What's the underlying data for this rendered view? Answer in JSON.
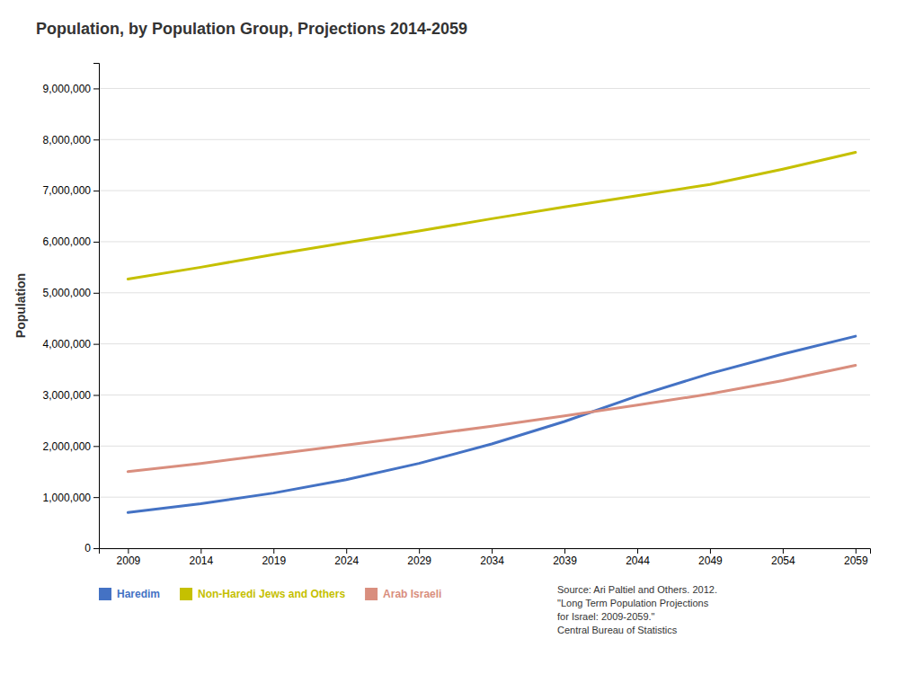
{
  "chart_data": {
    "type": "line",
    "title": "Population, by Population Group, Projections 2014-2059",
    "ylabel": "Population",
    "x": [
      2009,
      2014,
      2019,
      2024,
      2029,
      2034,
      2039,
      2044,
      2049,
      2054,
      2059
    ],
    "series": [
      {
        "name": "Haredim",
        "color": "#4472c4",
        "values": [
          700000,
          870000,
          1080000,
          1340000,
          1660000,
          2040000,
          2480000,
          2980000,
          3420000,
          3800000,
          4150000
        ]
      },
      {
        "name": "Non-Haredi Jews and Others",
        "color": "#c5c000",
        "values": [
          5270000,
          5500000,
          5750000,
          5980000,
          6210000,
          6450000,
          6680000,
          6900000,
          7120000,
          7420000,
          7750000
        ]
      },
      {
        "name": "Arab Israeli",
        "color": "#d98e7e",
        "values": [
          1500000,
          1660000,
          1840000,
          2020000,
          2200000,
          2390000,
          2590000,
          2800000,
          3020000,
          3280000,
          3580000
        ]
      }
    ],
    "xlim": [
      2007,
      2060
    ],
    "xticks": [
      2009,
      2014,
      2019,
      2024,
      2029,
      2034,
      2039,
      2044,
      2049,
      2054,
      2059
    ],
    "ylim": [
      0,
      9500000
    ],
    "yticks": [
      0,
      {
        "value": 1000000,
        "label": "1,000,000"
      },
      {
        "value": 2000000,
        "label": "2,000,000"
      },
      {
        "value": 3000000,
        "label": "3,000,000"
      },
      {
        "value": 4000000,
        "label": "4,000,000"
      },
      {
        "value": 5000000,
        "label": "5,000,000"
      },
      {
        "value": 6000000,
        "label": "6,000,000"
      },
      {
        "value": 7000000,
        "label": "7,000,000"
      },
      {
        "value": 8000000,
        "label": "8,000,000"
      },
      {
        "value": 9000000,
        "label": "9,000,000"
      }
    ],
    "grid": true,
    "legend": "bottom-left",
    "annotations": [
      "Source: Ari Paltiel and Others. 2012.\n\"Long Term Population Projections\nfor Israel: 2009-2059.\"\nCentral Bureau of Statistics"
    ]
  }
}
